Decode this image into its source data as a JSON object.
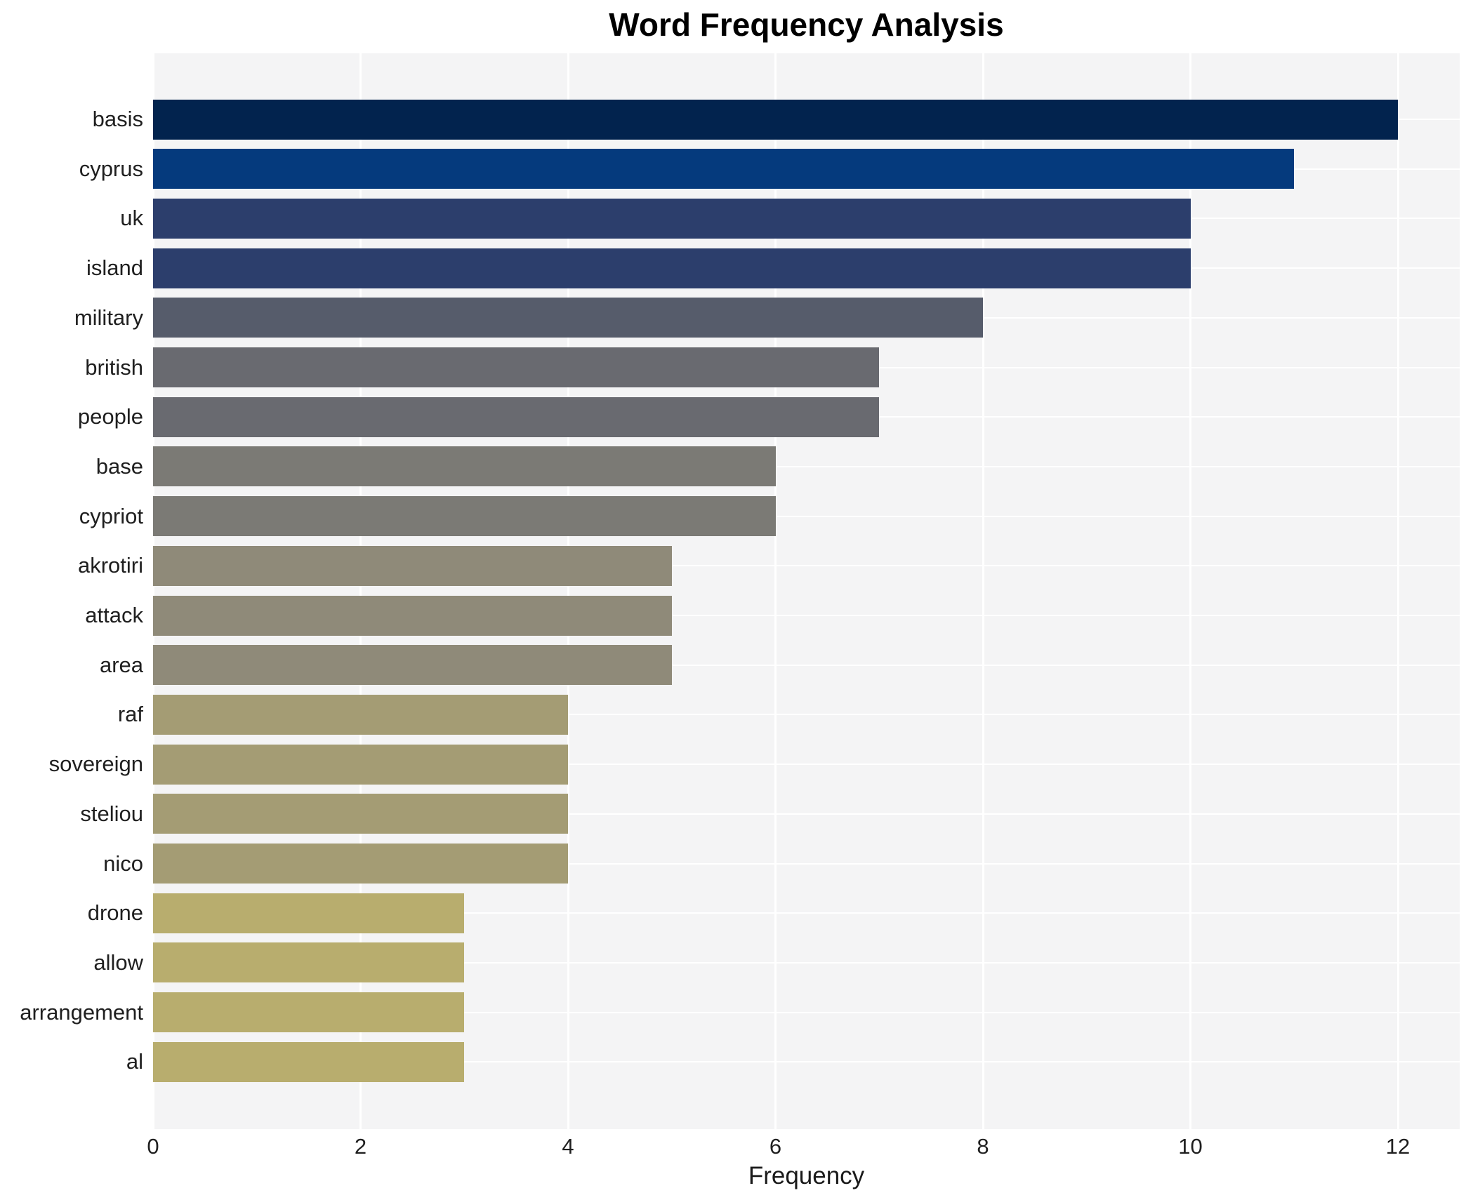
{
  "chart_data": {
    "type": "bar",
    "orientation": "horizontal",
    "title": "Word Frequency Analysis",
    "xlabel": "Frequency",
    "ylabel": "",
    "categories": [
      "basis",
      "cyprus",
      "uk",
      "island",
      "military",
      "british",
      "people",
      "base",
      "cypriot",
      "akrotiri",
      "attack",
      "area",
      "raf",
      "sovereign",
      "steliou",
      "nico",
      "drone",
      "allow",
      "arrangement",
      "al"
    ],
    "values": [
      12,
      11,
      10,
      10,
      8,
      7,
      7,
      6,
      6,
      5,
      5,
      5,
      4,
      4,
      4,
      4,
      3,
      3,
      3,
      3
    ],
    "bar_colors": [
      "#02234e",
      "#053a7d",
      "#2c3e6c",
      "#2c3e6c",
      "#565c6b",
      "#696a70",
      "#696a70",
      "#7b7a75",
      "#7b7a75",
      "#8f8a79",
      "#8f8a79",
      "#8f8a79",
      "#a49c74",
      "#a49c74",
      "#a49c74",
      "#a49c74",
      "#b8ad6e",
      "#b8ad6e",
      "#b8ad6e",
      "#b8ad6e"
    ],
    "xticks": [
      0,
      2,
      4,
      6,
      8,
      10,
      12
    ],
    "xlim": [
      0,
      12.6
    ],
    "legend": "none",
    "grid": "white major gridlines (vertical at x ticks, horizontal at category centers)",
    "panel_bg": "#f4f4f5",
    "gridline_color": "#ffffff",
    "figure_bg": "#ffffff",
    "text_color": "#1f1f1f"
  }
}
